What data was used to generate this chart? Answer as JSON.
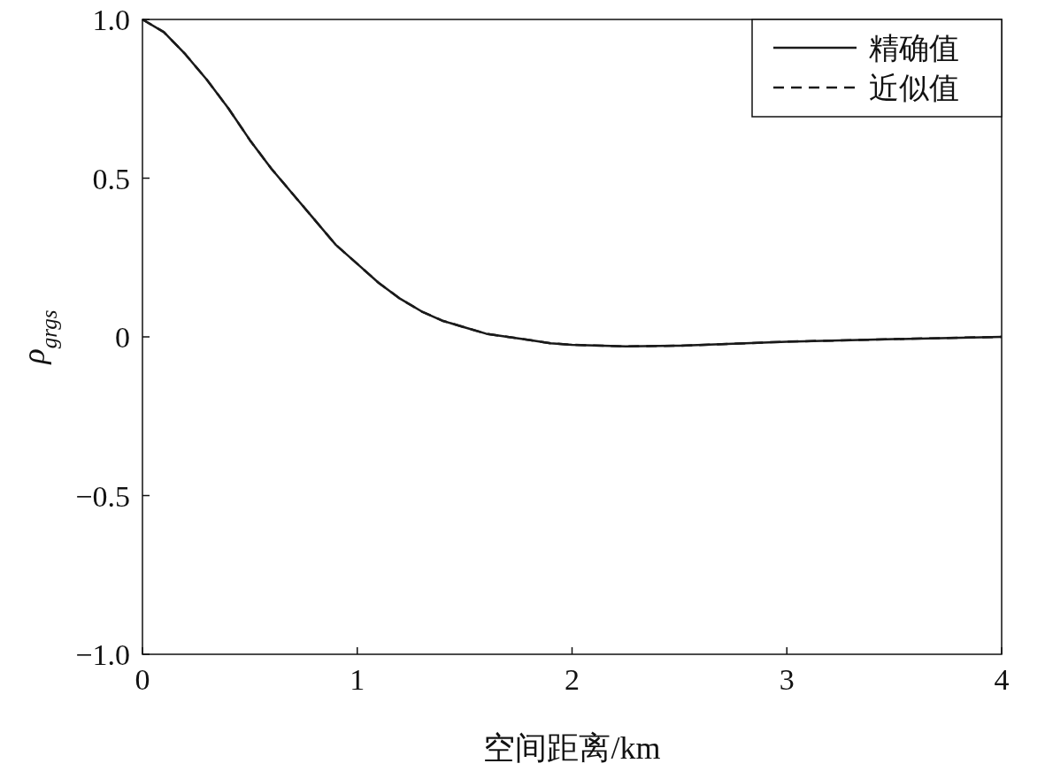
{
  "chart_data": {
    "type": "line",
    "xlabel": "空间距离/km",
    "ylabel": "ρ$_{grgs}$",
    "x": [
      0,
      0.1,
      0.2,
      0.3,
      0.4,
      0.5,
      0.6,
      0.7,
      0.8,
      0.9,
      1.0,
      1.1,
      1.2,
      1.3,
      1.4,
      1.5,
      1.6,
      1.7,
      1.8,
      1.9,
      2.0,
      2.25,
      2.5,
      3,
      3.5,
      4
    ],
    "series": [
      {
        "name": "精确值",
        "color": "#1a1a1a",
        "line_style": "solid",
        "values": [
          1,
          0.96,
          0.89,
          0.81,
          0.72,
          0.62,
          0.53,
          0.45,
          0.37,
          0.29,
          0.23,
          0.17,
          0.12,
          0.08,
          0.05,
          0.03,
          0.01,
          0,
          -0.01,
          -0.02,
          -0.025,
          -0.03,
          -0.028,
          -0.015,
          -0.007,
          0
        ]
      },
      {
        "name": "近似值",
        "color": "#1a1a1a",
        "line_style": "dashed",
        "values": [
          1,
          0.96,
          0.89,
          0.81,
          0.72,
          0.62,
          0.53,
          0.45,
          0.37,
          0.29,
          0.23,
          0.17,
          0.12,
          0.08,
          0.05,
          0.03,
          0.01,
          0,
          -0.01,
          -0.02,
          -0.025,
          -0.03,
          -0.028,
          -0.015,
          -0.007,
          0
        ]
      }
    ],
    "xlim": [
      0,
      4
    ],
    "xticks": [
      0,
      1,
      2,
      3,
      4
    ],
    "ylim": [
      -1,
      1
    ],
    "yticks": [
      {
        "value": 1,
        "label": "1.0"
      },
      {
        "value": 0.5,
        "label": "0.5"
      },
      0,
      {
        "value": -0.5,
        "label": "−0.5"
      },
      {
        "value": -1,
        "label": "−1.0"
      }
    ],
    "legend": "top right",
    "grid": false
  }
}
